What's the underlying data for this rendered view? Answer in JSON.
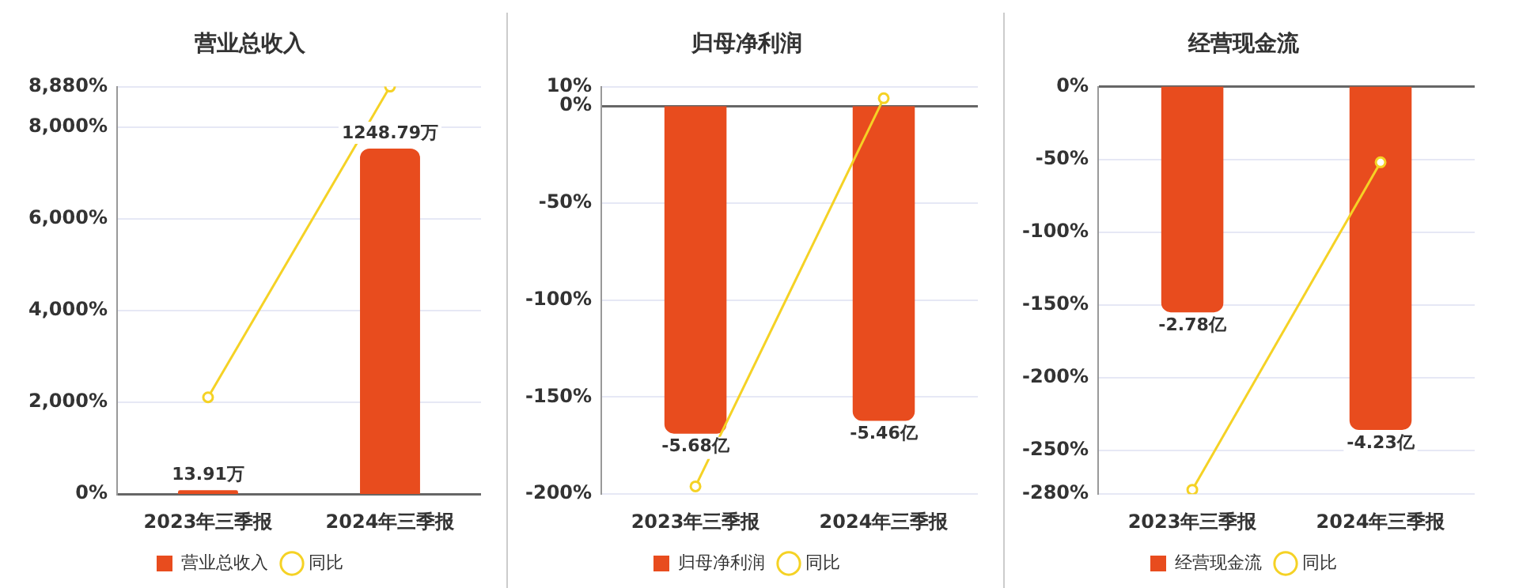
{
  "chart_data": [
    {
      "type": "bar",
      "title": "营业总收入",
      "categories": [
        "2023年三季报",
        "2024年三季报"
      ],
      "series": [
        {
          "name": "营业总收入",
          "color": "#e84c1e",
          "values": [
            13.91,
            1248.79
          ],
          "value_labels": [
            "13.91万",
            "1248.79万"
          ],
          "axis": "y2"
        },
        {
          "name": "同比",
          "type": "line",
          "color": "#f5d225",
          "values": [
            2110,
            8880
          ]
        }
      ],
      "ylim": [
        0,
        8880
      ],
      "yticks": [
        {
          "value": 0,
          "label": "0%"
        },
        {
          "value": 2000,
          "label": "2,000%"
        },
        {
          "value": 4000,
          "label": "4,000%"
        },
        {
          "value": 6000,
          "label": "6,000%"
        },
        {
          "value": 8000,
          "label": "8,000%"
        },
        {
          "value": 8880,
          "label": "8,880%"
        }
      ],
      "y2lim": [
        0,
        1473
      ],
      "grid": "y",
      "legend": "bottom",
      "marker": "circle"
    },
    {
      "type": "bar",
      "title": "归母净利润",
      "categories": [
        "2023年三季报",
        "2024年三季报"
      ],
      "series": [
        {
          "name": "归母净利润",
          "color": "#e84c1e",
          "values": [
            -5.68,
            -5.46
          ],
          "value_labels": [
            "-5.68亿",
            "-5.46亿"
          ],
          "axis": "y2"
        },
        {
          "name": "同比",
          "type": "line",
          "color": "#f5d225",
          "values": [
            -196,
            4
          ]
        }
      ],
      "ylim": [
        -200,
        10
      ],
      "yticks": [
        {
          "value": -200,
          "label": "-200%"
        },
        {
          "value": -150,
          "label": "-150%"
        },
        {
          "value": -100,
          "label": "-100%"
        },
        {
          "value": -50,
          "label": "-50%"
        },
        {
          "value": 0,
          "label": "0%"
        },
        {
          "value": 10,
          "label": "10%"
        }
      ],
      "y2lim": [
        -6.73,
        0.34
      ],
      "grid": "y",
      "legend": "bottom",
      "marker": "circle"
    },
    {
      "type": "bar",
      "title": "经营现金流",
      "categories": [
        "2023年三季报",
        "2024年三季报"
      ],
      "series": [
        {
          "name": "经营现金流",
          "color": "#e84c1e",
          "values": [
            -2.78,
            -4.23
          ],
          "value_labels": [
            "-2.78亿",
            "-4.23亿"
          ],
          "axis": "y2"
        },
        {
          "name": "同比",
          "type": "line",
          "color": "#f5d225",
          "values": [
            -277,
            -52
          ]
        }
      ],
      "ylim": [
        -280,
        0
      ],
      "yticks": [
        {
          "value": -280,
          "label": "-280%"
        },
        {
          "value": -250,
          "label": "-250%"
        },
        {
          "value": -200,
          "label": "-200%"
        },
        {
          "value": -150,
          "label": "-150%"
        },
        {
          "value": -100,
          "label": "-100%"
        },
        {
          "value": -50,
          "label": "-50%"
        },
        {
          "value": 0,
          "label": "0%"
        }
      ],
      "y2lim": [
        -5.02,
        0
      ],
      "grid": "y",
      "legend": "bottom",
      "marker": "circle"
    }
  ]
}
